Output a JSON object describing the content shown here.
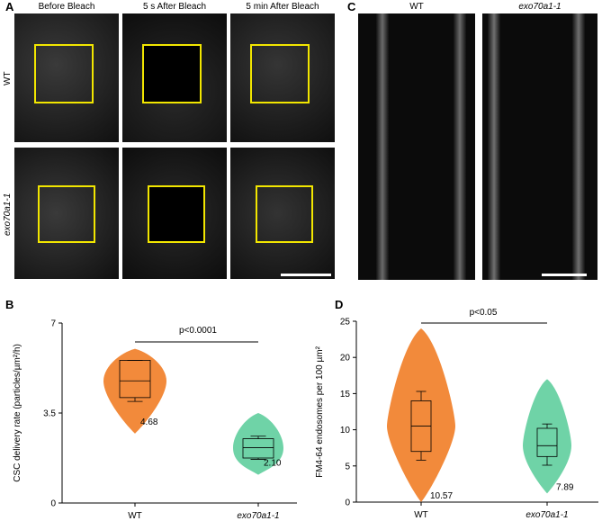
{
  "panels": {
    "A": {
      "letter": "A",
      "columns": [
        "Before Bleach",
        "5 s After Bleach",
        "5 min After Bleach"
      ],
      "rows": [
        "WT",
        "exo70a1-1"
      ]
    },
    "C": {
      "letter": "C",
      "columns": [
        "WT",
        "exo70a1-1"
      ]
    },
    "B": {
      "letter": "B"
    },
    "D": {
      "letter": "D"
    }
  },
  "chart_data": [
    {
      "type": "violin",
      "panel": "B",
      "ylabel": "CSC delivery rate (particles/µm²/h)",
      "ylim": [
        0,
        7
      ],
      "yticks": [
        "0",
        "3.5",
        "7"
      ],
      "categories": [
        "WT",
        "exo70a1-1"
      ],
      "series": [
        {
          "category": "WT",
          "color": "#f28a3b",
          "mean_label": "4.68",
          "min": 2.7,
          "max": 6.0,
          "q1": 4.1,
          "median": 4.75,
          "q3": 5.55,
          "whisker_low": 3.95,
          "whisker_high": 5.55
        },
        {
          "category": "exo70a1-1",
          "color": "#6fd3a7",
          "mean_label": "2.10",
          "min": 1.1,
          "max": 3.5,
          "q1": 1.75,
          "median": 2.15,
          "q3": 2.5,
          "whisker_low": 1.7,
          "whisker_high": 2.6
        }
      ],
      "annotation": "p<0.0001"
    },
    {
      "type": "violin",
      "panel": "D",
      "ylabel": "FM4-64 endosomes per 100 µm²",
      "ylim": [
        0,
        25
      ],
      "yticks": [
        "0",
        "5",
        "10",
        "15",
        "20",
        "25"
      ],
      "categories": [
        "WT",
        "exo70a1-1"
      ],
      "series": [
        {
          "category": "WT",
          "color": "#f28a3b",
          "mean_label": "10.57",
          "min": 0,
          "max": 24,
          "q1": 7.0,
          "median": 10.5,
          "q3": 14.0,
          "whisker_low": 5.8,
          "whisker_high": 15.3
        },
        {
          "category": "exo70a1-1",
          "color": "#6fd3a7",
          "mean_label": "7.89",
          "min": 1.2,
          "max": 17.0,
          "q1": 6.3,
          "median": 7.8,
          "q3": 10.2,
          "whisker_low": 5.1,
          "whisker_high": 10.8
        }
      ],
      "annotation": "p<0.05"
    }
  ]
}
